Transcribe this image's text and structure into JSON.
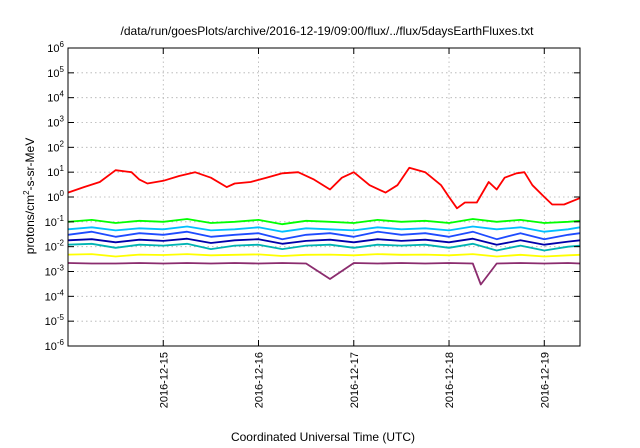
{
  "chart_data": {
    "type": "line",
    "title": "/data/run/goesPlots/archive/2016-12-19/09:00/flux/../flux/5daysEarthFluxes.txt",
    "xlabel": "Coordinated Universal Time (UTC)",
    "ylabel": {
      "base": "protons/cm",
      "exp": "2",
      "rest": "-s-sr-MeV"
    },
    "yscale": "log",
    "ylim": [
      1e-06,
      1000000.0
    ],
    "xlim": [
      "2016-12-14T00:00",
      "2016-12-19T09:00"
    ],
    "grid": true,
    "x_ticks": [
      "2016-12-15",
      "2016-12-16",
      "2016-12-17",
      "2016-12-18",
      "2016-12-19"
    ],
    "y_ticks": [
      {
        "value": 1e-06,
        "base": "10",
        "exp": "-6"
      },
      {
        "value": 1e-05,
        "base": "10",
        "exp": "-5"
      },
      {
        "value": 0.0001,
        "base": "10",
        "exp": "-4"
      },
      {
        "value": 0.001,
        "base": "10",
        "exp": "-3"
      },
      {
        "value": 0.01,
        "base": "10",
        "exp": "-2"
      },
      {
        "value": 0.1,
        "base": "10",
        "exp": "-1"
      },
      {
        "value": 1,
        "base": "10",
        "exp": "0"
      },
      {
        "value": 10,
        "base": "10",
        "exp": "1"
      },
      {
        "value": 100,
        "base": "10",
        "exp": "2"
      },
      {
        "value": 1000,
        "base": "10",
        "exp": "3"
      },
      {
        "value": 10000,
        "base": "10",
        "exp": "4"
      },
      {
        "value": 100000,
        "base": "10",
        "exp": "5"
      },
      {
        "value": 1000000,
        "base": "10",
        "exp": "6"
      }
    ],
    "series": [
      {
        "color": "#ff0000",
        "x": [
          "2016-12-14T00:00",
          "2016-12-14T04:00",
          "2016-12-14T08:00",
          "2016-12-14T12:00",
          "2016-12-14T16:00",
          "2016-12-14T18:00",
          "2016-12-14T20:00",
          "2016-12-15T00:00",
          "2016-12-15T04:00",
          "2016-12-15T08:00",
          "2016-12-15T12:00",
          "2016-12-15T16:00",
          "2016-12-15T18:00",
          "2016-12-15T22:00",
          "2016-12-16T02:00",
          "2016-12-16T06:00",
          "2016-12-16T10:00",
          "2016-12-16T14:00",
          "2016-12-16T18:00",
          "2016-12-16T21:00",
          "2016-12-17T00:00",
          "2016-12-17T04:00",
          "2016-12-17T08:00",
          "2016-12-17T11:00",
          "2016-12-17T14:00",
          "2016-12-17T18:00",
          "2016-12-17T22:00",
          "2016-12-18T00:00",
          "2016-12-18T02:00",
          "2016-12-18T04:00",
          "2016-12-18T07:00",
          "2016-12-18T10:00",
          "2016-12-18T12:00",
          "2016-12-18T14:00",
          "2016-12-18T17:00",
          "2016-12-18T19:00",
          "2016-12-18T21:00",
          "2016-12-19T00:00",
          "2016-12-19T02:00",
          "2016-12-19T05:00",
          "2016-12-19T09:00"
        ],
        "values": [
          1.5,
          2.5,
          4,
          12,
          10,
          5,
          3.5,
          4.5,
          7,
          10,
          6,
          2.5,
          3.5,
          4,
          6,
          9,
          10,
          5,
          2,
          6,
          10,
          3,
          1.5,
          3,
          15,
          10,
          3,
          1,
          0.35,
          0.6,
          0.6,
          4,
          2,
          6,
          9,
          10,
          3,
          1,
          0.5,
          0.5,
          0.9
        ]
      },
      {
        "color": "#00ff00",
        "x": [
          "2016-12-14T00:00",
          "2016-12-14T06:00",
          "2016-12-14T12:00",
          "2016-12-14T18:00",
          "2016-12-15T00:00",
          "2016-12-15T06:00",
          "2016-12-15T12:00",
          "2016-12-15T18:00",
          "2016-12-16T00:00",
          "2016-12-16T06:00",
          "2016-12-16T12:00",
          "2016-12-16T18:00",
          "2016-12-17T00:00",
          "2016-12-17T06:00",
          "2016-12-17T12:00",
          "2016-12-17T18:00",
          "2016-12-18T00:00",
          "2016-12-18T06:00",
          "2016-12-18T12:00",
          "2016-12-18T18:00",
          "2016-12-19T00:00",
          "2016-12-19T06:00",
          "2016-12-19T09:00"
        ],
        "values": [
          0.1,
          0.12,
          0.09,
          0.11,
          0.1,
          0.13,
          0.09,
          0.1,
          0.12,
          0.08,
          0.11,
          0.1,
          0.09,
          0.12,
          0.1,
          0.11,
          0.09,
          0.13,
          0.1,
          0.12,
          0.09,
          0.1,
          0.11
        ]
      },
      {
        "color": "#00bfff",
        "x": [
          "2016-12-14T00:00",
          "2016-12-14T06:00",
          "2016-12-14T12:00",
          "2016-12-14T18:00",
          "2016-12-15T00:00",
          "2016-12-15T06:00",
          "2016-12-15T12:00",
          "2016-12-15T18:00",
          "2016-12-16T00:00",
          "2016-12-16T06:00",
          "2016-12-16T12:00",
          "2016-12-16T18:00",
          "2016-12-17T00:00",
          "2016-12-17T06:00",
          "2016-12-17T12:00",
          "2016-12-17T18:00",
          "2016-12-18T00:00",
          "2016-12-18T06:00",
          "2016-12-18T12:00",
          "2016-12-18T18:00",
          "2016-12-19T00:00",
          "2016-12-19T06:00",
          "2016-12-19T09:00"
        ],
        "values": [
          0.05,
          0.06,
          0.045,
          0.055,
          0.05,
          0.065,
          0.045,
          0.05,
          0.06,
          0.04,
          0.055,
          0.05,
          0.045,
          0.06,
          0.05,
          0.055,
          0.045,
          0.065,
          0.05,
          0.06,
          0.04,
          0.05,
          0.06
        ]
      },
      {
        "color": "#1e4bff",
        "x": [
          "2016-12-14T00:00",
          "2016-12-14T06:00",
          "2016-12-14T12:00",
          "2016-12-14T18:00",
          "2016-12-15T00:00",
          "2016-12-15T06:00",
          "2016-12-15T12:00",
          "2016-12-15T18:00",
          "2016-12-16T00:00",
          "2016-12-16T06:00",
          "2016-12-16T12:00",
          "2016-12-16T18:00",
          "2016-12-17T00:00",
          "2016-12-17T06:00",
          "2016-12-17T12:00",
          "2016-12-17T18:00",
          "2016-12-18T00:00",
          "2016-12-18T06:00",
          "2016-12-18T12:00",
          "2016-12-18T18:00",
          "2016-12-19T00:00",
          "2016-12-19T06:00",
          "2016-12-19T09:00"
        ],
        "values": [
          0.03,
          0.04,
          0.025,
          0.035,
          0.03,
          0.04,
          0.025,
          0.03,
          0.035,
          0.02,
          0.03,
          0.035,
          0.025,
          0.04,
          0.03,
          0.035,
          0.025,
          0.04,
          0.02,
          0.035,
          0.02,
          0.03,
          0.035
        ]
      },
      {
        "color": "#0000aa",
        "x": [
          "2016-12-14T00:00",
          "2016-12-14T06:00",
          "2016-12-14T12:00",
          "2016-12-14T18:00",
          "2016-12-15T00:00",
          "2016-12-15T06:00",
          "2016-12-15T12:00",
          "2016-12-15T18:00",
          "2016-12-16T00:00",
          "2016-12-16T06:00",
          "2016-12-16T12:00",
          "2016-12-16T18:00",
          "2016-12-17T00:00",
          "2016-12-17T06:00",
          "2016-12-17T12:00",
          "2016-12-17T18:00",
          "2016-12-18T00:00",
          "2016-12-18T06:00",
          "2016-12-18T12:00",
          "2016-12-18T18:00",
          "2016-12-19T00:00",
          "2016-12-19T06:00",
          "2016-12-19T09:00"
        ],
        "values": [
          0.018,
          0.02,
          0.015,
          0.019,
          0.017,
          0.021,
          0.014,
          0.018,
          0.02,
          0.013,
          0.017,
          0.019,
          0.015,
          0.02,
          0.017,
          0.019,
          0.015,
          0.021,
          0.012,
          0.018,
          0.012,
          0.016,
          0.018
        ]
      },
      {
        "color": "#00b3b3",
        "x": [
          "2016-12-14T00:00",
          "2016-12-14T06:00",
          "2016-12-14T12:00",
          "2016-12-14T18:00",
          "2016-12-15T00:00",
          "2016-12-15T06:00",
          "2016-12-15T12:00",
          "2016-12-15T18:00",
          "2016-12-16T00:00",
          "2016-12-16T06:00",
          "2016-12-16T12:00",
          "2016-12-16T18:00",
          "2016-12-17T00:00",
          "2016-12-17T06:00",
          "2016-12-17T12:00",
          "2016-12-17T18:00",
          "2016-12-18T00:00",
          "2016-12-18T06:00",
          "2016-12-18T12:00",
          "2016-12-18T18:00",
          "2016-12-19T00:00",
          "2016-12-19T06:00",
          "2016-12-19T09:00"
        ],
        "values": [
          0.012,
          0.013,
          0.009,
          0.012,
          0.011,
          0.013,
          0.008,
          0.011,
          0.012,
          0.008,
          0.011,
          0.012,
          0.009,
          0.012,
          0.011,
          0.012,
          0.009,
          0.013,
          0.007,
          0.011,
          0.007,
          0.01,
          0.011
        ]
      },
      {
        "color": "#ffff00",
        "x": [
          "2016-12-14T00:00",
          "2016-12-14T06:00",
          "2016-12-14T12:00",
          "2016-12-14T18:00",
          "2016-12-15T00:00",
          "2016-12-15T06:00",
          "2016-12-15T12:00",
          "2016-12-15T18:00",
          "2016-12-16T00:00",
          "2016-12-16T06:00",
          "2016-12-16T12:00",
          "2016-12-16T18:00",
          "2016-12-17T00:00",
          "2016-12-17T06:00",
          "2016-12-17T12:00",
          "2016-12-17T18:00",
          "2016-12-18T00:00",
          "2016-12-18T06:00",
          "2016-12-18T12:00",
          "2016-12-18T18:00",
          "2016-12-19T00:00",
          "2016-12-19T06:00",
          "2016-12-19T09:00"
        ],
        "values": [
          0.0048,
          0.005,
          0.004,
          0.0048,
          0.0046,
          0.005,
          0.0045,
          0.0047,
          0.0049,
          0.0042,
          0.0047,
          0.0048,
          0.0045,
          0.005,
          0.0047,
          0.0048,
          0.0045,
          0.005,
          0.004,
          0.0047,
          0.004,
          0.0045,
          0.0047
        ]
      },
      {
        "color": "#8b2c6e",
        "x": [
          "2016-12-14T00:00",
          "2016-12-14T06:00",
          "2016-12-14T12:00",
          "2016-12-14T18:00",
          "2016-12-15T00:00",
          "2016-12-15T06:00",
          "2016-12-15T12:00",
          "2016-12-15T18:00",
          "2016-12-16T00:00",
          "2016-12-16T06:00",
          "2016-12-16T12:00",
          "2016-12-16T18:00",
          "2016-12-17T00:00",
          "2016-12-17T06:00",
          "2016-12-17T12:00",
          "2016-12-17T18:00",
          "2016-12-18T00:00",
          "2016-12-18T06:00",
          "2016-12-18T08:00",
          "2016-12-18T12:00",
          "2016-12-18T18:00",
          "2016-12-19T00:00",
          "2016-12-19T06:00",
          "2016-12-19T09:00"
        ],
        "values": [
          0.0022,
          0.0021,
          0.0021,
          0.0022,
          0.0021,
          0.0022,
          0.0021,
          0.0022,
          0.0021,
          0.0022,
          0.0021,
          0.0005,
          0.0022,
          0.0021,
          0.0022,
          0.0021,
          0.0022,
          0.0021,
          0.0003,
          0.0021,
          0.0022,
          0.0021,
          0.0022,
          0.0021
        ]
      }
    ]
  }
}
